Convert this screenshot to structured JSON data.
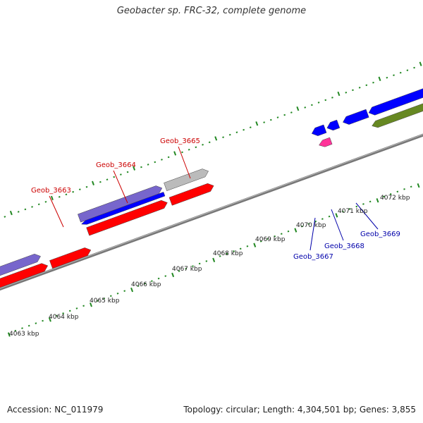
{
  "title": "Geobacter sp. FRC-32, complete genome",
  "footer": {
    "accession": "Accession: NC_011979",
    "summary": "Topology: circular; Length: 4,304,501 bp; Genes: 3,855"
  },
  "colors": {
    "forward_gene": "#ff0000",
    "reverse_gene": "#0000ff",
    "pseudo": "#ff3399",
    "other": "#668822",
    "lavender": "#7766cc",
    "gray": "#bbbbbb",
    "tick": "#228822",
    "backbone": "#888888",
    "forward_label": "#cc0000",
    "reverse_label": "#0000aa"
  },
  "tick_labels": [
    "4063 kbp",
    "4064 kbp",
    "4065 kbp",
    "4066 kbp",
    "4067 kbp",
    "4068 kbp",
    "4069 kbp",
    "4070 kbp",
    "4071 kbp",
    "4072 kbp"
  ],
  "gene_labels": [
    {
      "text": "Geob_3663",
      "strand": "forward"
    },
    {
      "text": "Geob_3664",
      "strand": "forward"
    },
    {
      "text": "Geob_3665",
      "strand": "forward"
    },
    {
      "text": "Geob_3667",
      "strand": "reverse"
    },
    {
      "text": "Geob_3668",
      "strand": "reverse"
    },
    {
      "text": "Geob_3669",
      "strand": "reverse"
    }
  ]
}
